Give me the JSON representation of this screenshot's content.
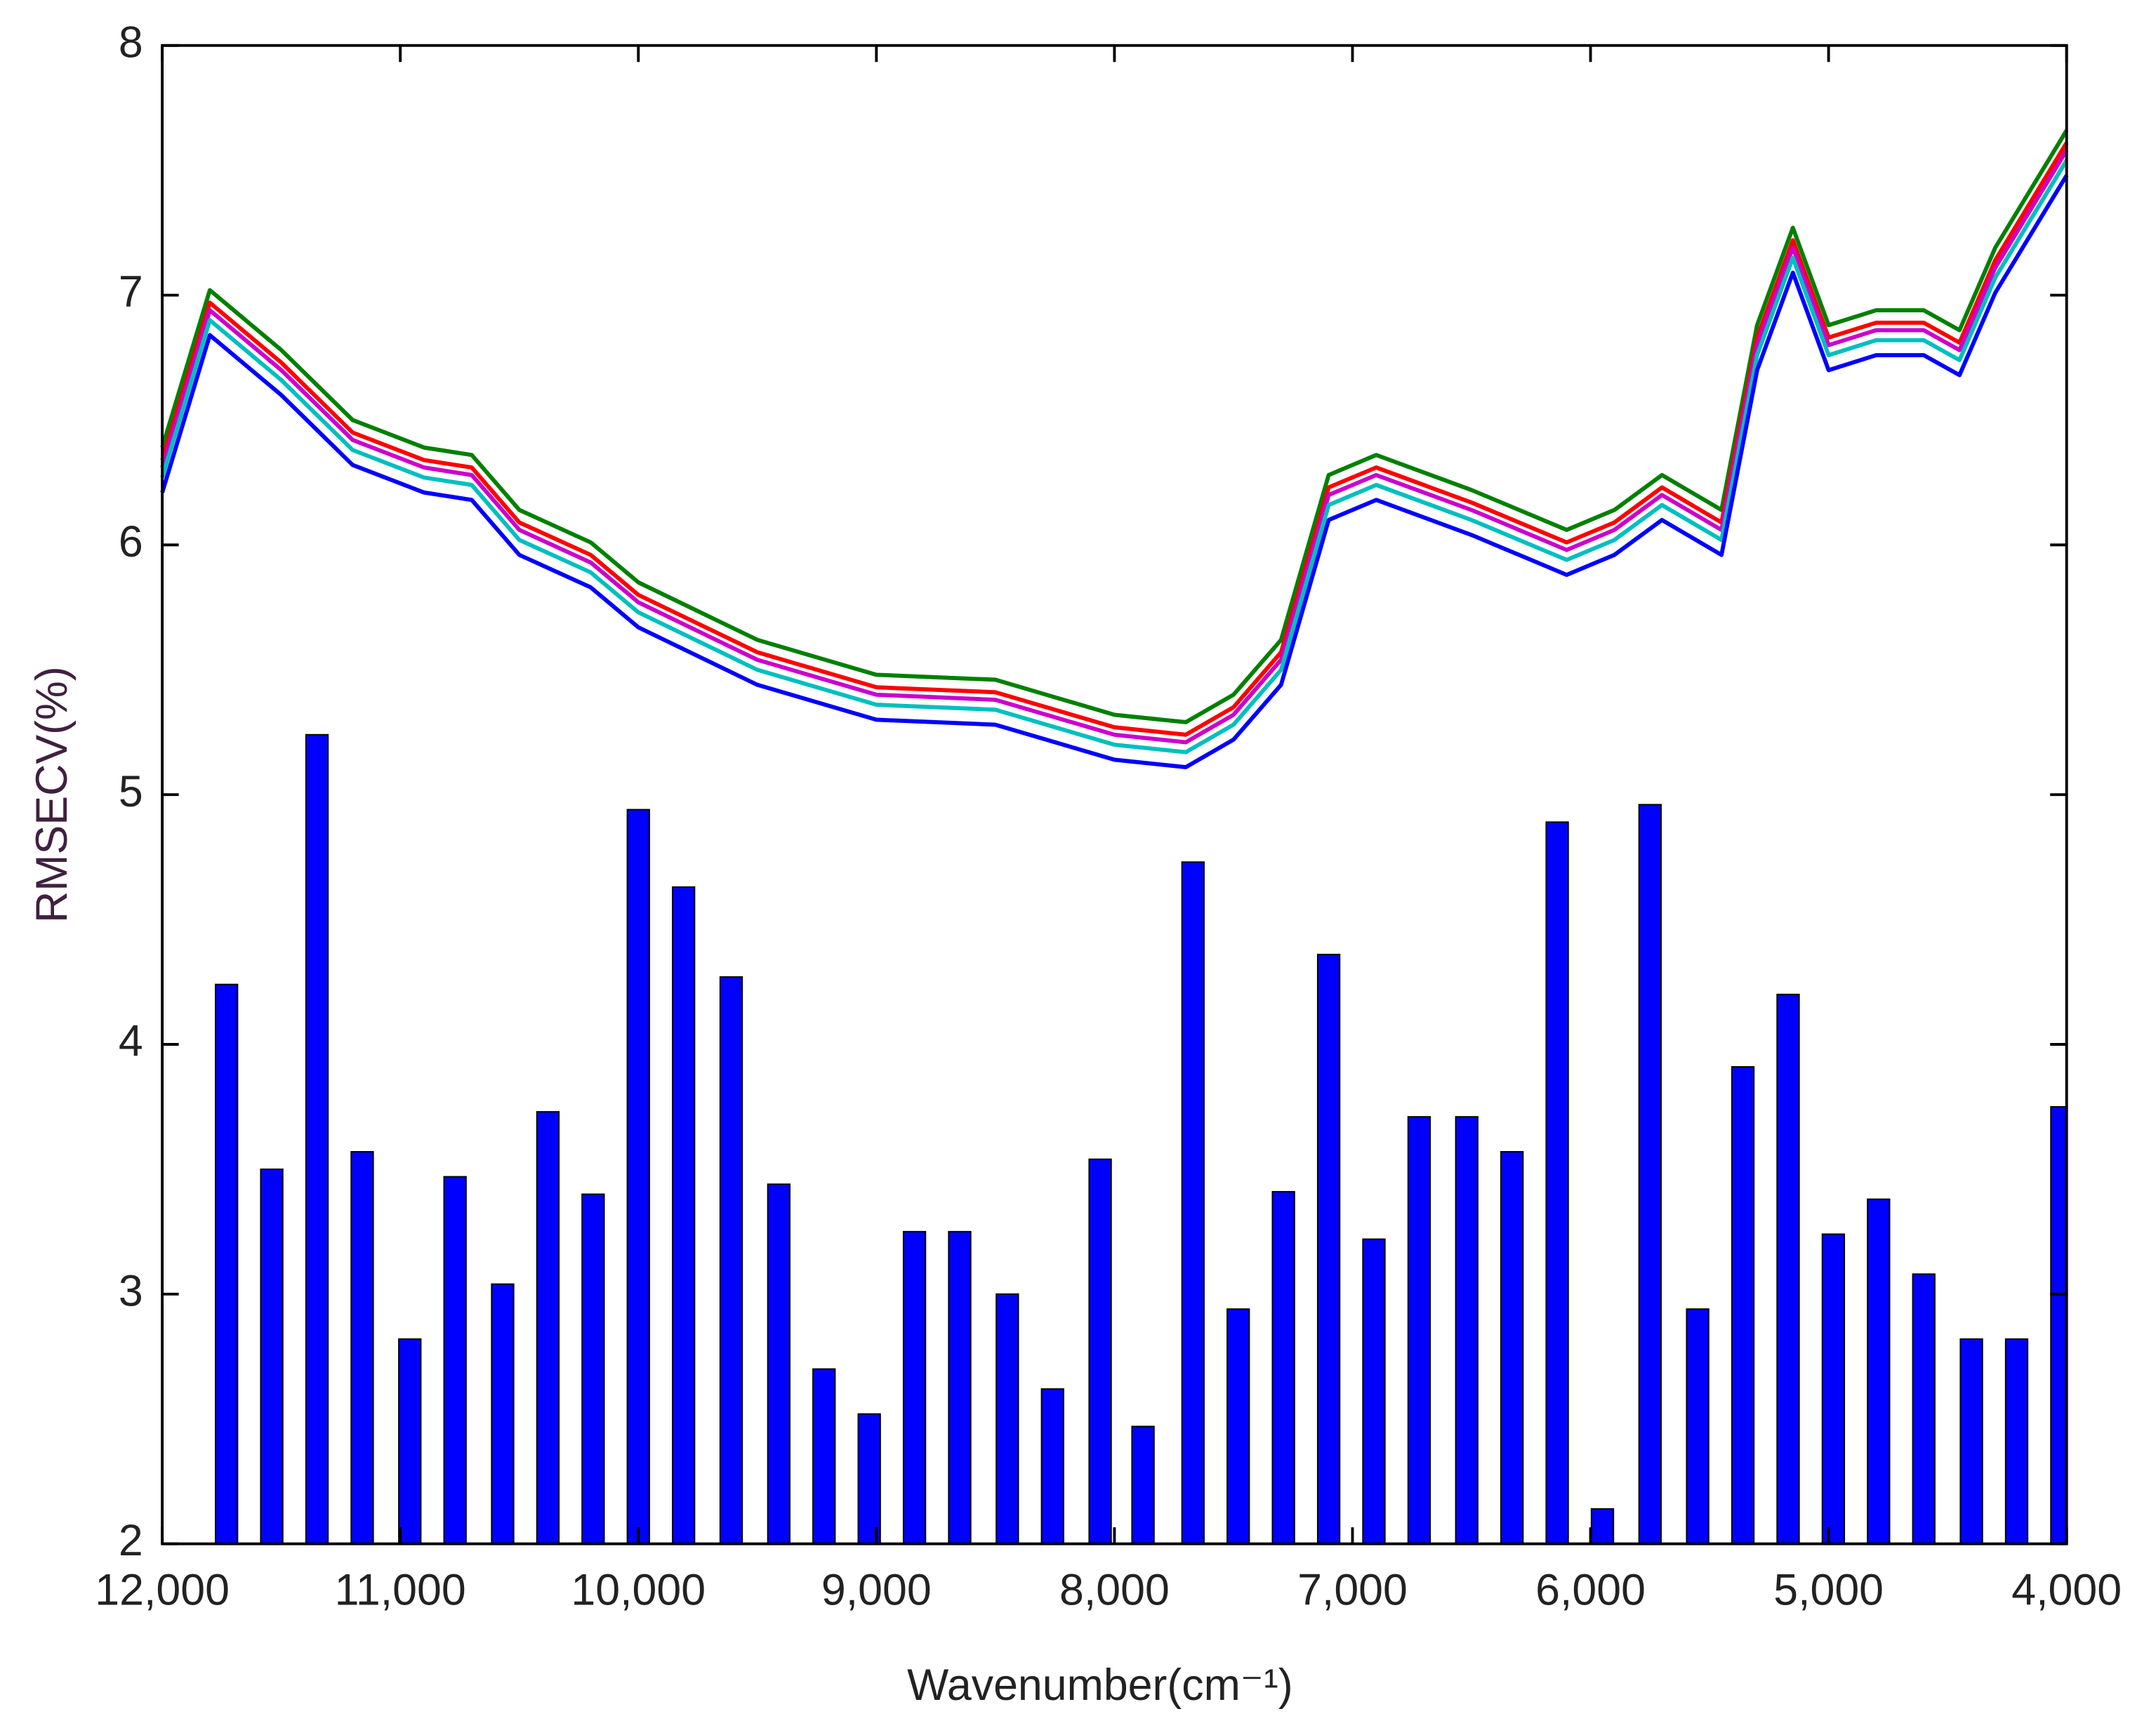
{
  "chart_data": {
    "type": "bar",
    "x_label": "Wavenumber(cm⁻¹)",
    "y_label": "RMSECV(%)",
    "xlim": [
      12000,
      4000
    ],
    "ylim": [
      2,
      8
    ],
    "xticks": [
      {
        "value": 12000,
        "label": "12,000"
      },
      {
        "value": 11000,
        "label": "11,000"
      },
      {
        "value": 10000,
        "label": "10,000"
      },
      {
        "value": 9000,
        "label": "9,000"
      },
      {
        "value": 8000,
        "label": "8,000"
      },
      {
        "value": 7000,
        "label": "7,000"
      },
      {
        "value": 6000,
        "label": "6,000"
      },
      {
        "value": 5000,
        "label": "5,000"
      },
      {
        "value": 4000,
        "label": "4,000"
      }
    ],
    "yticks": [
      2,
      3,
      4,
      5,
      6,
      7,
      8
    ],
    "bar_color": "#0000ff",
    "bar_x": [
      11730,
      11540,
      11350,
      11160,
      10960,
      10770,
      10570,
      10380,
      10190,
      10000,
      9810,
      9610,
      9410,
      9220,
      9030,
      8840,
      8650,
      8450,
      8260,
      8060,
      7880,
      7670,
      7480,
      7290,
      7100,
      6910,
      6720,
      6520,
      6330,
      6140,
      5950,
      5750,
      5550,
      5360,
      5170,
      4980,
      4790,
      4600,
      4400,
      4210,
      4020
    ],
    "bar_values": [
      4.24,
      3.5,
      5.24,
      3.57,
      2.82,
      3.47,
      3.04,
      3.73,
      3.4,
      4.94,
      4.63,
      4.27,
      3.44,
      2.7,
      2.52,
      3.25,
      3.25,
      3.0,
      2.62,
      3.54,
      2.47,
      4.73,
      2.94,
      3.41,
      4.36,
      3.22,
      3.71,
      3.71,
      3.57,
      4.89,
      2.14,
      4.96,
      2.94,
      3.91,
      4.2,
      3.24,
      3.38,
      3.08,
      2.82,
      2.82,
      3.75
    ],
    "x": [
      12000,
      11800,
      11500,
      11200,
      10900,
      10700,
      10500,
      10200,
      10000,
      9500,
      9000,
      8500,
      8000,
      7700,
      7500,
      7300,
      7100,
      6900,
      6500,
      6100,
      5900,
      5700,
      5450,
      5300,
      5150,
      5000,
      4800,
      4600,
      4450,
      4300,
      4000
    ],
    "series": [
      {
        "color": "#008000",
        "values": [
          6.39,
          7.02,
          6.78,
          6.5,
          6.39,
          6.36,
          6.14,
          6.01,
          5.85,
          5.62,
          5.48,
          5.46,
          5.32,
          5.29,
          5.4,
          5.62,
          6.28,
          6.36,
          6.22,
          6.06,
          6.14,
          6.28,
          6.14,
          6.88,
          7.27,
          6.88,
          6.94,
          6.94,
          6.86,
          7.19,
          7.66
        ]
      },
      {
        "color": "#ff0000",
        "values": [
          6.34,
          6.97,
          6.73,
          6.45,
          6.34,
          6.31,
          6.09,
          5.96,
          5.8,
          5.57,
          5.43,
          5.41,
          5.27,
          5.24,
          5.35,
          5.57,
          6.23,
          6.31,
          6.17,
          6.01,
          6.09,
          6.23,
          6.09,
          6.83,
          7.22,
          6.83,
          6.89,
          6.89,
          6.81,
          7.14,
          7.61
        ]
      },
      {
        "color": "#cc00cc",
        "values": [
          6.31,
          6.94,
          6.7,
          6.42,
          6.31,
          6.28,
          6.06,
          5.93,
          5.77,
          5.54,
          5.4,
          5.38,
          5.24,
          5.21,
          5.32,
          5.54,
          6.2,
          6.28,
          6.14,
          5.98,
          6.06,
          6.2,
          6.06,
          6.8,
          7.19,
          6.8,
          6.86,
          6.86,
          6.78,
          7.11,
          7.58
        ]
      },
      {
        "color": "#00bfbf",
        "values": [
          6.27,
          6.9,
          6.66,
          6.38,
          6.27,
          6.24,
          6.02,
          5.89,
          5.73,
          5.5,
          5.36,
          5.34,
          5.2,
          5.17,
          5.28,
          5.5,
          6.16,
          6.24,
          6.1,
          5.94,
          6.02,
          6.16,
          6.02,
          6.76,
          7.15,
          6.76,
          6.82,
          6.82,
          6.74,
          7.07,
          7.54
        ]
      },
      {
        "color": "#0000ff",
        "values": [
          6.21,
          6.84,
          6.6,
          6.32,
          6.21,
          6.18,
          5.96,
          5.83,
          5.67,
          5.44,
          5.3,
          5.28,
          5.14,
          5.11,
          5.22,
          5.44,
          6.1,
          6.18,
          6.04,
          5.88,
          5.96,
          6.1,
          5.96,
          6.7,
          7.09,
          6.7,
          6.76,
          6.76,
          6.68,
          7.01,
          7.48
        ]
      }
    ]
  }
}
